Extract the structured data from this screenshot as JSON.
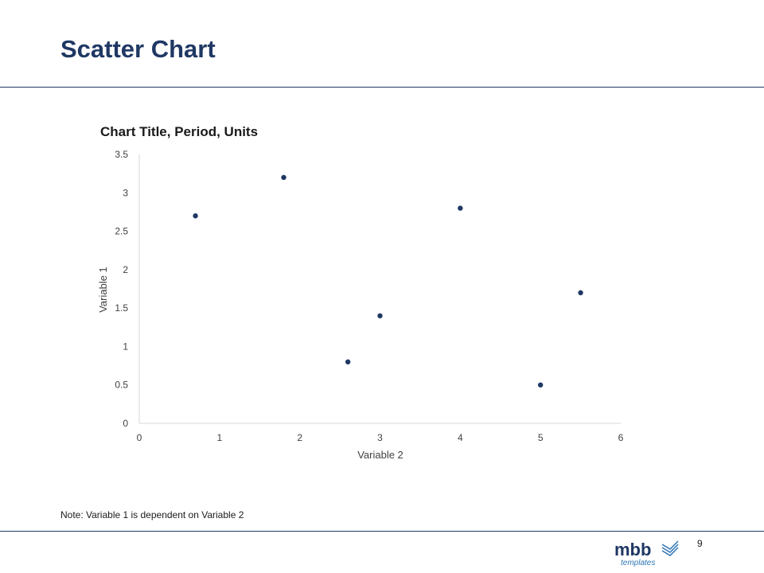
{
  "slide": {
    "title": "Scatter Chart",
    "note": "Note: Variable 1 is dependent on Variable 2",
    "page_number": "9",
    "logo": {
      "name": "mbb",
      "subtitle": "templates"
    }
  },
  "colors": {
    "title": "#1f3864",
    "point": "#1f3864",
    "axis": "#d9d9d9",
    "tick_text": "#404040",
    "rule": "#1f3864"
  },
  "chart_data": {
    "type": "scatter",
    "title": "Chart Title, Period, Units",
    "xlabel": "Variable 2",
    "ylabel": "Variable 1",
    "xlim": [
      0,
      6
    ],
    "ylim": [
      0,
      3.5
    ],
    "xticks": [
      "0",
      "1",
      "2",
      "3",
      "4",
      "5",
      "6"
    ],
    "yticks": [
      "0",
      "0.5",
      "1",
      "1.5",
      "2",
      "2.5",
      "3",
      "3.5"
    ],
    "grid": false,
    "legend": "none",
    "series": [
      {
        "points": [
          {
            "x": 0.7,
            "y": 2.7
          },
          {
            "x": 1.8,
            "y": 3.2
          },
          {
            "x": 2.6,
            "y": 0.8
          },
          {
            "x": 3.0,
            "y": 1.4
          },
          {
            "x": 4.0,
            "y": 2.8
          },
          {
            "x": 5.0,
            "y": 0.5
          },
          {
            "x": 5.5,
            "y": 1.7
          }
        ]
      }
    ]
  }
}
